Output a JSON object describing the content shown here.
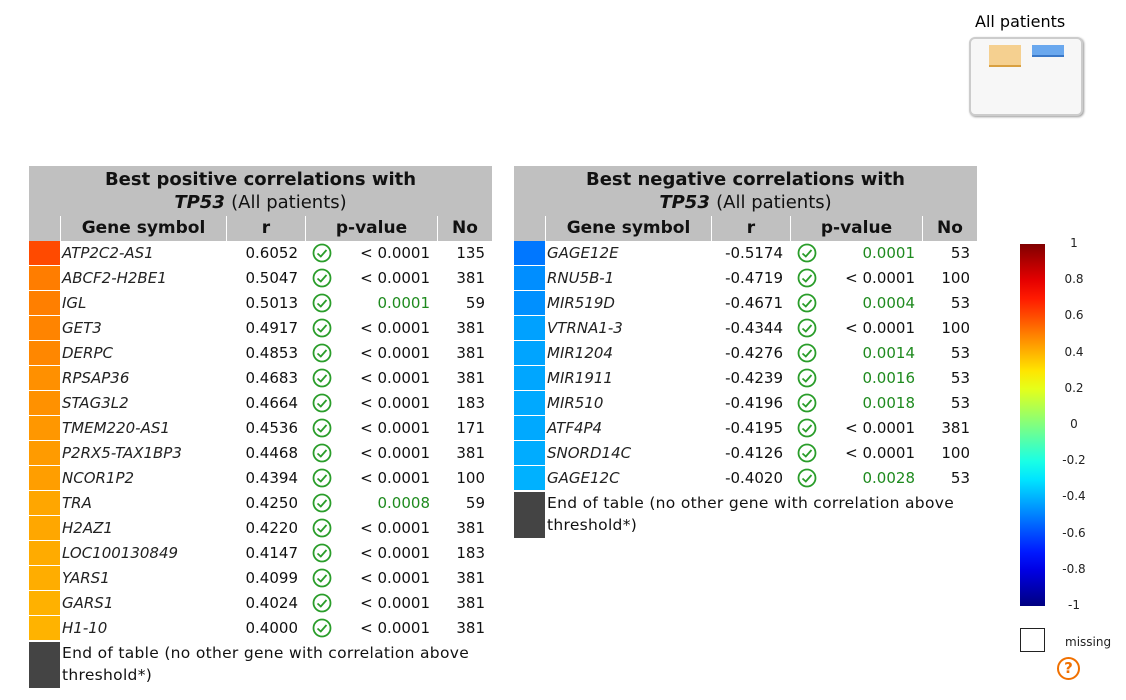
{
  "legend_box": {
    "title": "All patients"
  },
  "tables": [
    {
      "title": "Best positive correlations with",
      "gene": "TP53",
      "subset": "(All patients)",
      "columns": [
        "Gene symbol",
        "r",
        "p-value",
        "No"
      ],
      "rows": [
        [
          "ATP2C2-AS1",
          "0.6052",
          "< 0.0001",
          "135"
        ],
        [
          "ABCF2-H2BE1",
          "0.5047",
          "< 0.0001",
          "381"
        ],
        [
          "IGL",
          "0.5013",
          "0.0001",
          "59"
        ],
        [
          "GET3",
          "0.4917",
          "< 0.0001",
          "381"
        ],
        [
          "DERPC",
          "0.4853",
          "< 0.0001",
          "381"
        ],
        [
          "RPSAP36",
          "0.4683",
          "< 0.0001",
          "381"
        ],
        [
          "STAG3L2",
          "0.4664",
          "< 0.0001",
          "183"
        ],
        [
          "TMEM220-AS1",
          "0.4536",
          "< 0.0001",
          "171"
        ],
        [
          "P2RX5-TAX1BP3",
          "0.4468",
          "< 0.0001",
          "381"
        ],
        [
          "NCOR1P2",
          "0.4394",
          "< 0.0001",
          "100"
        ],
        [
          "TRA",
          "0.4250",
          "0.0008",
          "59"
        ],
        [
          "H2AZ1",
          "0.4220",
          "< 0.0001",
          "381"
        ],
        [
          "LOC100130849",
          "0.4147",
          "< 0.0001",
          "183"
        ],
        [
          "YARS1",
          "0.4099",
          "< 0.0001",
          "381"
        ],
        [
          "GARS1",
          "0.4024",
          "< 0.0001",
          "381"
        ],
        [
          "H1-10",
          "0.4000",
          "< 0.0001",
          "381"
        ]
      ],
      "footer": "End of table (no other gene with correlation above threshold*)"
    },
    {
      "title": "Best negative correlations with",
      "gene": "TP53",
      "subset": "(All patients)",
      "columns": [
        "Gene symbol",
        "r",
        "p-value",
        "No"
      ],
      "rows": [
        [
          "GAGE12E",
          "-0.5174",
          "0.0001",
          "53"
        ],
        [
          "RNU5B-1",
          "-0.4719",
          "< 0.0001",
          "100"
        ],
        [
          "MIR519D",
          "-0.4671",
          "0.0004",
          "53"
        ],
        [
          "VTRNA1-3",
          "-0.4344",
          "< 0.0001",
          "100"
        ],
        [
          "MIR1204",
          "-0.4276",
          "0.0014",
          "53"
        ],
        [
          "MIR1911",
          "-0.4239",
          "0.0016",
          "53"
        ],
        [
          "MIR510",
          "-0.4196",
          "0.0018",
          "53"
        ],
        [
          "ATF4P4",
          "-0.4195",
          "< 0.0001",
          "381"
        ],
        [
          "SNORD14C",
          "-0.4126",
          "< 0.0001",
          "100"
        ],
        [
          "GAGE12C",
          "-0.4020",
          "0.0028",
          "53"
        ]
      ],
      "footer": "End of table (no other gene with correlation above threshold*)"
    }
  ],
  "colorbar": {
    "ticks": [
      1,
      0.8,
      0.6,
      0.4,
      0.2,
      0,
      -0.2,
      -0.4,
      -0.6,
      -0.8,
      -1
    ],
    "missing": "missing"
  }
}
